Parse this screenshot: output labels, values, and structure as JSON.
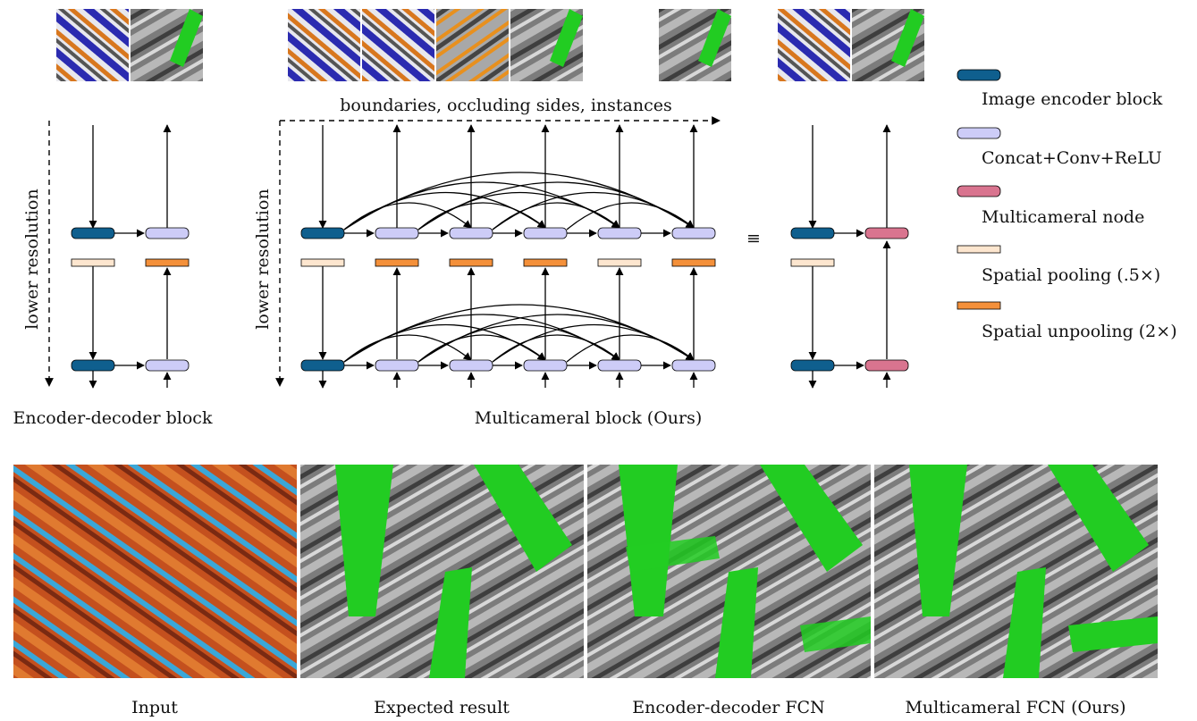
{
  "colors": {
    "encoder": "#0f5f8e",
    "concat": "#cdccf7",
    "multicam": "#d9748f",
    "pooling": "#fde6cf",
    "unpooling": "#f4903a",
    "green": "#22cc22"
  },
  "labels": {
    "lower_resolution_1": "lower resolution",
    "lower_resolution_2": "lower resolution",
    "top_arrow": "boundaries, occluding sides, instances",
    "equiv": "≡"
  },
  "captions": {
    "encoder_decoder_block": "Encoder-decoder block",
    "multicameral_block": "Multicameral block (Ours)"
  },
  "legend": [
    {
      "key": "encoder",
      "label": "Image encoder block"
    },
    {
      "key": "concat",
      "label": "Concat+Conv+ReLU"
    },
    {
      "key": "multicam",
      "label": "Multicameral node"
    },
    {
      "key": "pooling",
      "label": "Spatial pooling (.5×)"
    },
    {
      "key": "unpooling",
      "label": "Spatial unpooling (2×)"
    }
  ],
  "bottom_captions": [
    "Input",
    "Expected result",
    "Encoder-decoder FCN",
    "Multicameral FCN (Ours)"
  ]
}
